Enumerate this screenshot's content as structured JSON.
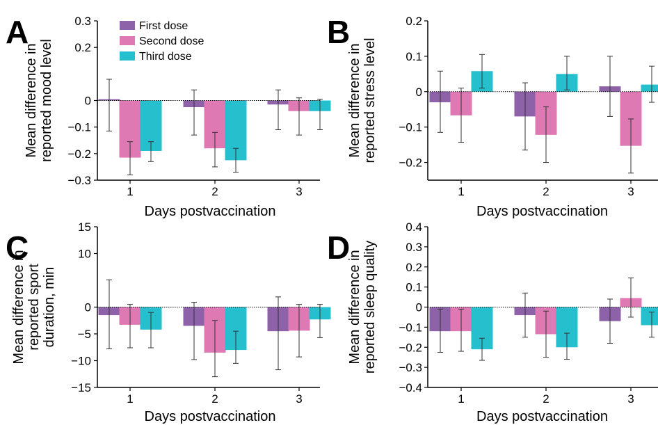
{
  "legend": [
    {
      "label": "First dose",
      "color": "#8e62a8"
    },
    {
      "label": "Second dose",
      "color": "#df79b4"
    },
    {
      "label": "Third dose",
      "color": "#26bfcd"
    }
  ],
  "chart_data": [
    {
      "panel": "A",
      "type": "bar",
      "xlabel": "Days postvaccination",
      "ylabel": "Mean difference in reported mood level",
      "categories": [
        "1",
        "2",
        "3"
      ],
      "ylim": [
        -0.3,
        0.3
      ],
      "yticks": [
        -0.3,
        -0.2,
        -0.1,
        0,
        0.2,
        0.3
      ],
      "ytick_labels": [
        "−0.3",
        "−0.2",
        "−0.1",
        "0",
        "0.2",
        "0.3"
      ],
      "series": [
        {
          "name": "First dose",
          "values": [
            0.005,
            -0.025,
            -0.015
          ],
          "err_low": [
            -0.115,
            -0.13,
            -0.11
          ],
          "err_high": [
            0.08,
            0.04,
            0.04
          ]
        },
        {
          "name": "Second dose",
          "values": [
            -0.215,
            -0.18,
            -0.04
          ],
          "err_low": [
            -0.28,
            -0.25,
            -0.13
          ],
          "err_high": [
            -0.155,
            -0.12,
            0.01
          ]
        },
        {
          "name": "Third dose",
          "values": [
            -0.19,
            -0.225,
            -0.04
          ],
          "err_low": [
            -0.23,
            -0.27,
            -0.11
          ],
          "err_high": [
            -0.155,
            -0.18,
            0.005
          ]
        }
      ]
    },
    {
      "panel": "B",
      "type": "bar",
      "xlabel": "Days postvaccination",
      "ylabel": "Mean difference in reported stress level",
      "categories": [
        "1",
        "2",
        "3"
      ],
      "ylim": [
        -0.25,
        0.2
      ],
      "yticks": [
        -0.2,
        -0.1,
        0,
        0.1,
        0.2
      ],
      "ytick_labels": [
        "−0.2",
        "−0.1",
        "0",
        "0.1",
        "0.2"
      ],
      "series": [
        {
          "name": "First dose",
          "values": [
            -0.03,
            -0.07,
            0.015
          ],
          "err_low": [
            -0.115,
            -0.165,
            -0.07
          ],
          "err_high": [
            0.058,
            0.025,
            0.1
          ]
        },
        {
          "name": "Second dose",
          "values": [
            -0.067,
            -0.122,
            -0.153
          ],
          "err_low": [
            -0.143,
            -0.2,
            -0.23
          ],
          "err_high": [
            0.01,
            -0.043,
            -0.077
          ]
        },
        {
          "name": "Third dose",
          "values": [
            0.058,
            0.05,
            0.02
          ],
          "err_low": [
            0.01,
            0.005,
            -0.03
          ],
          "err_high": [
            0.105,
            0.1,
            0.072
          ]
        }
      ]
    },
    {
      "panel": "C",
      "type": "bar",
      "xlabel": "Days postvaccination",
      "ylabel": "Mean difference in reported sport duration, min",
      "categories": [
        "1",
        "2",
        "3"
      ],
      "ylim": [
        -15,
        15
      ],
      "yticks": [
        -15,
        -10,
        -5,
        0,
        10,
        15
      ],
      "ytick_labels": [
        "−15",
        "−10",
        "−5",
        "0",
        "10",
        "15"
      ],
      "series": [
        {
          "name": "First dose",
          "values": [
            -1.5,
            -3.5,
            -4.5
          ],
          "err_low": [
            -7.8,
            -9.8,
            -11.7
          ],
          "err_high": [
            5.1,
            0.9,
            1.9
          ]
        },
        {
          "name": "Second dose",
          "values": [
            -3.3,
            -8.5,
            -4.4
          ],
          "err_low": [
            -7.6,
            -13.0,
            -9.3
          ],
          "err_high": [
            0.5,
            -2.5,
            0.5
          ]
        },
        {
          "name": "Third dose",
          "values": [
            -4.2,
            -8.0,
            -2.3
          ],
          "err_low": [
            -7.6,
            -10.5,
            -5.7
          ],
          "err_high": [
            -1.0,
            -4.5,
            0.5
          ]
        }
      ]
    },
    {
      "panel": "D",
      "type": "bar",
      "xlabel": "Days postvaccination",
      "ylabel": "Mean difference in reported sleep quality",
      "categories": [
        "1",
        "2",
        "3"
      ],
      "ylim": [
        -0.4,
        0.4
      ],
      "yticks": [
        -0.4,
        -0.3,
        -0.2,
        -0.1,
        0,
        0.1,
        0.2,
        0.3,
        0.4
      ],
      "ytick_labels": [
        "−0.4",
        "−0.3",
        "−0.2",
        "−0.1",
        "0",
        "0.1",
        "0.2",
        "0.3",
        "0.4"
      ],
      "series": [
        {
          "name": "First dose",
          "values": [
            -0.12,
            -0.04,
            -0.07
          ],
          "err_low": [
            -0.225,
            -0.15,
            -0.18
          ],
          "err_high": [
            -0.01,
            0.07,
            0.04
          ]
        },
        {
          "name": "Second dose",
          "values": [
            -0.12,
            -0.135,
            0.045
          ],
          "err_low": [
            -0.22,
            -0.25,
            -0.05
          ],
          "err_high": [
            -0.01,
            -0.02,
            0.145
          ]
        },
        {
          "name": "Third dose",
          "values": [
            -0.21,
            -0.2,
            -0.09
          ],
          "err_low": [
            -0.265,
            -0.26,
            -0.15
          ],
          "err_high": [
            -0.155,
            -0.13,
            -0.025
          ]
        }
      ]
    }
  ]
}
